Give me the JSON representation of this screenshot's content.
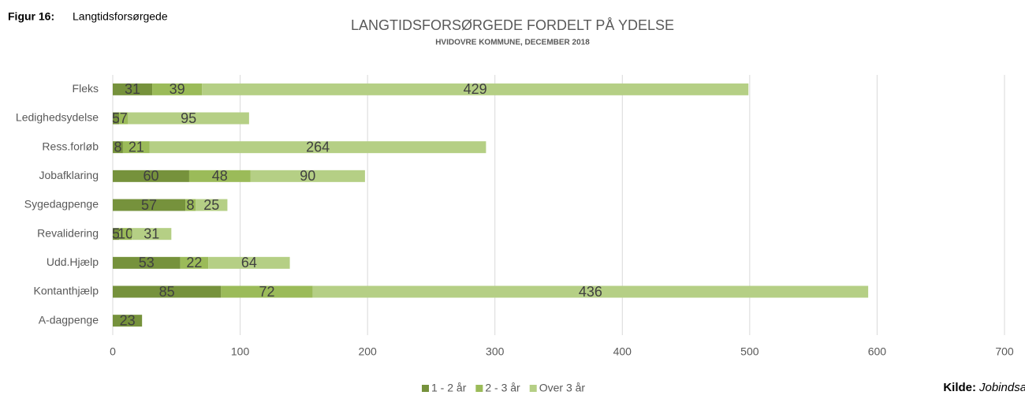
{
  "figure_label": "Figur 16:",
  "figure_title": "Langtidsforsørgede",
  "source_label": "Kilde:",
  "source": "Jobindsats",
  "chart_data": {
    "type": "stacked_bar_horizontal",
    "title": "LANGTIDSFORSØRGEDE FORDELT PÅ YDELSE",
    "subtitle": "HVIDOVRE KOMMUNE, DECEMBER 2018",
    "categories": [
      "Fleks",
      "Ledighedsydelse",
      "Ress.forløb",
      "Jobafklaring",
      "Sygedagpenge",
      "Revalidering",
      "Udd.Hjælp",
      "Kontanthjælp",
      "A-dagpenge"
    ],
    "series": [
      {
        "name": "1 - 2 år",
        "color": "#76923c",
        "values": [
          31,
          5,
          8,
          60,
          57,
          5,
          53,
          85,
          23
        ]
      },
      {
        "name": "2 - 3 år",
        "color": "#9bbb59",
        "values": [
          39,
          7,
          21,
          48,
          8,
          10,
          22,
          72,
          null
        ]
      },
      {
        "name": "Over 3 år",
        "color": "#b5cf85",
        "values": [
          429,
          95,
          264,
          90,
          25,
          31,
          64,
          436,
          null
        ]
      }
    ],
    "xlim": [
      0,
      700
    ],
    "xticks": [
      0,
      100,
      200,
      300,
      400,
      500,
      600,
      700
    ],
    "grid": true,
    "legend": "bottom"
  }
}
